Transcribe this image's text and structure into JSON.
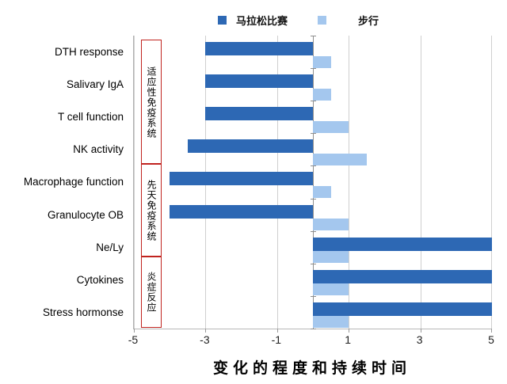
{
  "chart": {
    "background": "#ffffff"
  },
  "legend": {
    "items": [
      {
        "label": "马拉松比赛",
        "color": "#2d68b4"
      },
      {
        "label": "步行",
        "color": "#a4c7ee"
      }
    ]
  },
  "chart_data": {
    "type": "bar",
    "orientation": "horizontal",
    "title": "",
    "xlabel": "变化的程度和持续时间",
    "xlim": [
      -5,
      5
    ],
    "xticks": [
      -5,
      -3,
      -1,
      1,
      3,
      5
    ],
    "grid": true,
    "legend_position": "top",
    "categories": [
      "DTH response",
      "Salivary IgA",
      "T cell function",
      "NK activity",
      "Macrophage function",
      "Granulocyte OB",
      "Ne/Ly",
      "Cytokines",
      "Stress hormonse"
    ],
    "series": [
      {
        "name": "马拉松比赛",
        "color": "#2d68b4",
        "values": [
          -3,
          -3,
          -3,
          -3.5,
          -4,
          -4,
          5,
          5,
          5
        ]
      },
      {
        "name": "步行",
        "color": "#a4c7ee",
        "values": [
          0.5,
          0.5,
          1,
          1.5,
          0.5,
          1,
          1,
          1,
          1
        ]
      }
    ],
    "group_boxes": [
      {
        "label": "适应性免疫系统",
        "categories": [
          "DTH response",
          "Salivary IgA",
          "T cell function",
          "NK activity"
        ],
        "border_color": "#c0231f"
      },
      {
        "label": "先天免疫系统",
        "categories": [
          "Macrophage function",
          "Granulocyte OB",
          "Ne/Ly"
        ],
        "border_color": "#c0231f"
      },
      {
        "label": "炎症反应",
        "categories": [
          "Cytokines",
          "Stress hormonse"
        ],
        "border_color": "#c0231f"
      }
    ],
    "axis_colors": {
      "gridline": "#cfcfcf",
      "zero_axis": "#8f8f8f",
      "axis_line": "#b5b5b5"
    }
  }
}
